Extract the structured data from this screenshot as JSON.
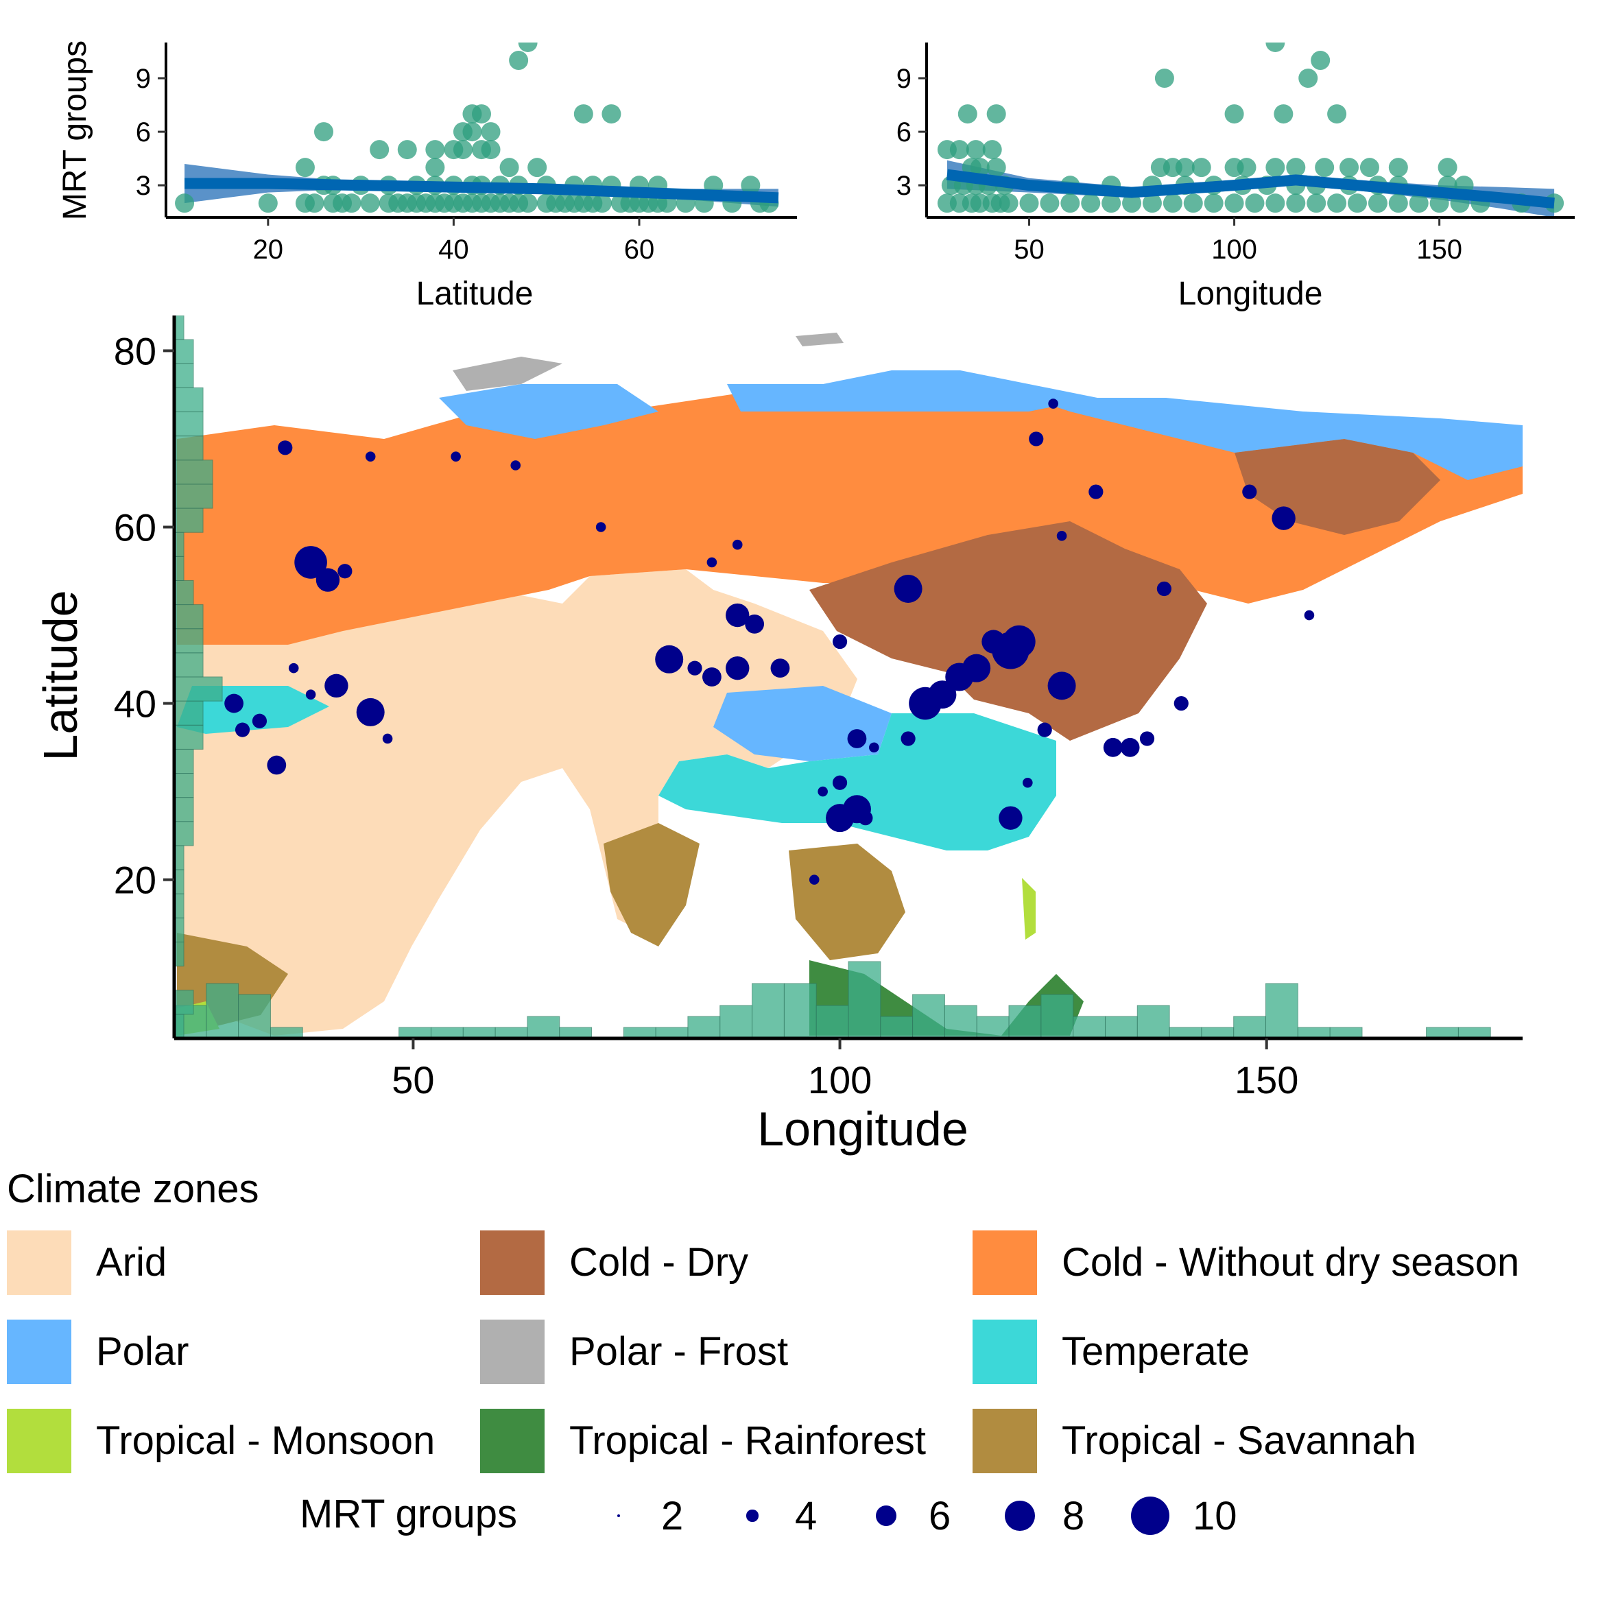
{
  "chart_data": [
    {
      "type": "scatter",
      "panel": "top-left",
      "xlabel": "Latitude",
      "ylabel": "MRT groups",
      "xticks": [
        "20",
        "40",
        "60"
      ],
      "yticks": [
        "3",
        "6",
        "9"
      ],
      "xlim": [
        9,
        77
      ],
      "ylim": [
        1.2,
        11
      ],
      "point_color": "#2E9E7E",
      "smooth_color": "#0066B2",
      "smooth_band_color": "#3D7FC0",
      "x": [
        11,
        20,
        24,
        25,
        27,
        28,
        29,
        31,
        33,
        34,
        35,
        36,
        37,
        38,
        39,
        40,
        41,
        42,
        43,
        44,
        45,
        46,
        47,
        48,
        50,
        51,
        52,
        53,
        54,
        55,
        56,
        58,
        59,
        60,
        61,
        62,
        63,
        65,
        67,
        70,
        73,
        74,
        26,
        27,
        30,
        33,
        36,
        38,
        40,
        42,
        43,
        45,
        47,
        50,
        53,
        55,
        57,
        60,
        62,
        68,
        72,
        38,
        40,
        41,
        43,
        44,
        41,
        42,
        44,
        46,
        42,
        43,
        47,
        48,
        54,
        57,
        24,
        26,
        32,
        35,
        38,
        49
      ],
      "y": [
        2,
        2,
        2,
        2,
        2,
        2,
        2,
        2,
        2,
        2,
        2,
        2,
        2,
        2,
        2,
        2,
        2,
        2,
        2,
        2,
        2,
        2,
        2,
        2,
        2,
        2,
        2,
        2,
        2,
        2,
        2,
        2,
        2,
        2,
        2,
        2,
        2,
        2,
        2,
        2,
        2,
        2,
        3,
        3,
        3,
        3,
        3,
        3,
        3,
        3,
        3,
        3,
        3,
        3,
        3,
        3,
        3,
        3,
        3,
        3,
        3,
        5,
        5,
        5,
        5,
        5,
        6,
        6,
        6,
        4,
        7,
        7,
        10,
        11,
        7,
        7,
        4,
        6,
        5,
        5,
        4,
        4
      ],
      "smooth_x": [
        11,
        20,
        30,
        40,
        50,
        60,
        70,
        75
      ],
      "smooth_y": [
        3.1,
        3.1,
        3.0,
        2.9,
        2.8,
        2.6,
        2.4,
        2.3
      ],
      "smooth_lo": [
        2.0,
        2.6,
        2.8,
        2.7,
        2.6,
        2.4,
        2.0,
        1.8
      ],
      "smooth_hi": [
        4.2,
        3.6,
        3.2,
        3.1,
        3.0,
        2.8,
        2.8,
        2.8
      ]
    },
    {
      "type": "scatter",
      "panel": "top-right",
      "xlabel": "Longitude",
      "ylabel": "",
      "xticks": [
        "50",
        "100",
        "150"
      ],
      "yticks": [
        "3",
        "6",
        "9"
      ],
      "xlim": [
        25,
        183
      ],
      "ylim": [
        1.2,
        11
      ],
      "point_color": "#2E9E7E",
      "smooth_color": "#0066B2",
      "smooth_band_color": "#3D7FC0",
      "x": [
        30,
        33,
        36,
        38,
        41,
        43,
        45,
        50,
        55,
        60,
        65,
        70,
        75,
        80,
        85,
        90,
        95,
        100,
        105,
        110,
        115,
        120,
        125,
        130,
        135,
        140,
        145,
        150,
        155,
        160,
        170,
        178,
        31,
        34,
        37,
        40,
        44,
        60,
        70,
        80,
        88,
        95,
        102,
        108,
        115,
        120,
        128,
        135,
        140,
        152,
        156,
        36,
        38,
        42,
        82,
        85,
        88,
        92,
        100,
        103,
        110,
        115,
        122,
        128,
        133,
        140,
        152,
        30,
        33,
        37,
        41,
        35,
        42,
        83,
        100,
        112,
        118,
        125,
        110,
        121
      ],
      "y": [
        2,
        2,
        2,
        2,
        2,
        2,
        2,
        2,
        2,
        2,
        2,
        2,
        2,
        2,
        2,
        2,
        2,
        2,
        2,
        2,
        2,
        2,
        2,
        2,
        2,
        2,
        2,
        2,
        2,
        2,
        2,
        2,
        3,
        3,
        3,
        3,
        3,
        3,
        3,
        3,
        3,
        3,
        3,
        3,
        3,
        3,
        3,
        3,
        3,
        3,
        3,
        4,
        4,
        4,
        4,
        4,
        4,
        4,
        4,
        4,
        4,
        4,
        4,
        4,
        4,
        4,
        4,
        5,
        5,
        5,
        5,
        7,
        7,
        9,
        7,
        7,
        9,
        7,
        11,
        10
      ],
      "smooth_x": [
        30,
        50,
        75,
        100,
        115,
        130,
        150,
        165,
        178
      ],
      "smooth_y": [
        3.6,
        3.0,
        2.6,
        3.0,
        3.3,
        3.0,
        2.6,
        2.3,
        2.0
      ],
      "smooth_lo": [
        2.8,
        2.6,
        2.3,
        2.7,
        3.0,
        2.7,
        2.2,
        1.7,
        1.2
      ],
      "smooth_hi": [
        4.4,
        3.4,
        2.9,
        3.3,
        3.6,
        3.3,
        3.0,
        2.9,
        2.8
      ]
    },
    {
      "type": "scatter",
      "panel": "main-map",
      "xlabel": "Longitude",
      "ylabel": "Latitude",
      "xticks": [
        "50",
        "100",
        "150"
      ],
      "yticks": [
        "20",
        "40",
        "60",
        "80"
      ],
      "xlim": [
        22,
        180
      ],
      "ylim": [
        2,
        84
      ],
      "point_color": "#00008B",
      "lon": [
        35,
        45,
        38,
        40,
        42,
        38,
        29,
        30,
        32,
        34,
        41,
        45,
        47,
        36,
        55,
        62,
        72,
        85,
        88,
        88,
        90,
        80,
        83,
        85,
        88,
        93,
        100,
        102,
        104,
        100,
        98,
        100,
        102,
        103,
        108,
        110,
        112,
        114,
        116,
        118,
        120,
        126,
        124,
        122,
        138,
        148,
        152,
        155,
        140,
        132,
        134,
        136,
        125,
        123,
        130,
        97,
        120,
        108,
        121,
        126
      ],
      "lat": [
        69,
        68,
        56,
        54,
        55,
        41,
        40,
        37,
        38,
        33,
        42,
        39,
        36,
        44,
        68,
        67,
        60,
        56,
        58,
        50,
        49,
        45,
        44,
        43,
        44,
        44,
        47,
        36,
        35,
        31,
        30,
        27,
        28,
        27,
        53,
        40,
        41,
        43,
        44,
        47,
        46,
        42,
        37,
        31,
        53,
        64,
        61,
        50,
        40,
        35,
        35,
        36,
        74,
        70,
        64,
        20,
        27,
        36,
        47,
        59
      ],
      "size": [
        4,
        3,
        8,
        6,
        4,
        3,
        5,
        4,
        4,
        5,
        6,
        7,
        3,
        3,
        3,
        3,
        3,
        3,
        3,
        6,
        5,
        7,
        4,
        5,
        6,
        5,
        4,
        5,
        3,
        4,
        3,
        7,
        7,
        4,
        7,
        8,
        7,
        7,
        7,
        6,
        9,
        7,
        4,
        3,
        4,
        4,
        6,
        3,
        4,
        5,
        5,
        4,
        3,
        4,
        4,
        3,
        6,
        4,
        8,
        3
      ],
      "histogram_color": "#3DAE8A",
      "lon_hist_counts": [
        3,
        5,
        4,
        1,
        0,
        0,
        0,
        1,
        1,
        1,
        1,
        2,
        1,
        0,
        1,
        1,
        2,
        3,
        5,
        5,
        3,
        7,
        2,
        4,
        3,
        2,
        3,
        4,
        2,
        2,
        3,
        1,
        1,
        2,
        5,
        1,
        1,
        0,
        0,
        1,
        1,
        0
      ],
      "lat_hist_counts": [
        1,
        2,
        0,
        1,
        1,
        1,
        1,
        1,
        2,
        2,
        2,
        2,
        3,
        3,
        5,
        3,
        3,
        3,
        2,
        1,
        1,
        3,
        4,
        4,
        3,
        3,
        3,
        2,
        2,
        1
      ]
    }
  ],
  "legend": {
    "title": "Climate zones",
    "items": [
      {
        "label": "Arid",
        "color": "#FDDCB8"
      },
      {
        "label": "Cold - Dry",
        "color": "#B36A43"
      },
      {
        "label": "Cold - Without dry season",
        "color": "#FF8C3F"
      },
      {
        "label": "Polar",
        "color": "#66B6FF"
      },
      {
        "label": "Polar - Frost",
        "color": "#B0B0B0"
      },
      {
        "label": "Temperate",
        "color": "#3CD8D8"
      },
      {
        "label": "Tropical - Monsoon",
        "color": "#B2DE3D"
      },
      {
        "label": "Tropical - Rainforest",
        "color": "#3F8C41"
      },
      {
        "label": "Tropical - Savannah",
        "color": "#B18C40"
      }
    ]
  },
  "size_legend": {
    "title": "MRT groups",
    "entries": [
      {
        "label": "2",
        "value": 2
      },
      {
        "label": "4",
        "value": 4
      },
      {
        "label": "6",
        "value": 6
      },
      {
        "label": "8",
        "value": 8
      },
      {
        "label": "10",
        "value": 10
      }
    ],
    "color": "#00008B"
  }
}
